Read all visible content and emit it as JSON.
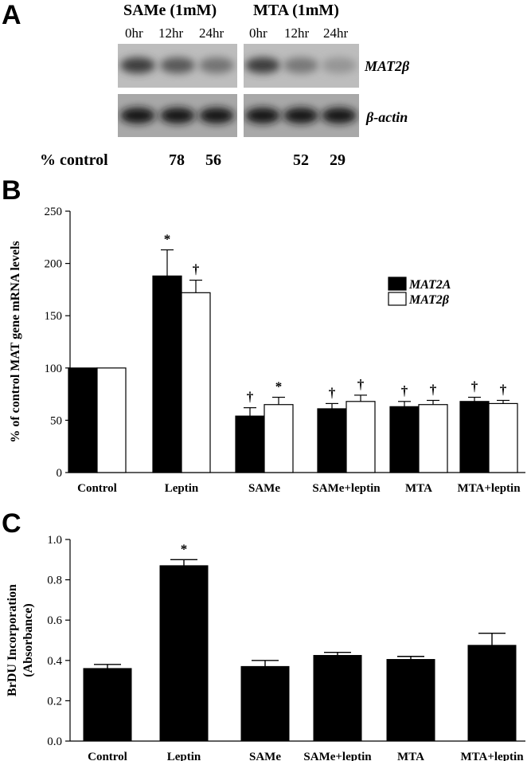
{
  "panelA": {
    "letter": "A",
    "groups": [
      {
        "label": "SAMe (1mM)",
        "times": [
          "0hr",
          "12hr",
          "24hr"
        ]
      },
      {
        "label": "MTA (1mM)",
        "times": [
          "0hr",
          "12hr",
          "24hr"
        ]
      }
    ],
    "bands": [
      "MAT2β",
      "β-actin"
    ],
    "percent_label": "% control",
    "percent_values": [
      "78",
      "56",
      "52",
      "29"
    ],
    "band_intensity": {
      "MAT2β": [
        [
          1.0,
          0.78,
          0.56
        ],
        [
          1.0,
          0.52,
          0.29
        ]
      ],
      "β-actin": [
        [
          1.0,
          1.0,
          1.0
        ],
        [
          1.0,
          1.0,
          1.0
        ]
      ]
    }
  },
  "chart_data": [
    {
      "panel": "B",
      "type": "bar",
      "ylabel": "% of control MAT gene mRNA levels",
      "ylim": [
        0,
        250
      ],
      "yticks": [
        0,
        50,
        100,
        150,
        200,
        250
      ],
      "categories": [
        "Control",
        "Leptin",
        "SAMe",
        "SAMe+leptin",
        "MTA",
        "MTA+leptin"
      ],
      "series": [
        {
          "name": "MAT2A",
          "color": "#000000",
          "values": [
            100,
            188,
            54,
            61,
            63,
            68
          ],
          "errors": [
            0,
            25,
            8,
            5,
            5,
            4
          ],
          "marks": [
            "",
            "*",
            "†",
            "†",
            "†",
            "†"
          ]
        },
        {
          "name": "MAT2β",
          "color": "#ffffff",
          "values": [
            100,
            172,
            65,
            68,
            65,
            66
          ],
          "errors": [
            0,
            12,
            7,
            6,
            4,
            3
          ],
          "marks": [
            "",
            "†",
            "*",
            "†",
            "†",
            "†"
          ]
        }
      ],
      "legend": "right"
    },
    {
      "panel": "C",
      "type": "bar",
      "ylabel_lines": [
        "BrDU Incorporation",
        "(Absorbance)"
      ],
      "ylim": [
        0,
        1.0
      ],
      "yticks": [
        "0.0",
        "0.2",
        "0.4",
        "0.6",
        "0.8",
        "1.0"
      ],
      "categories": [
        "Control",
        "Leptin",
        "SAMe",
        "SAMe+leptin",
        "MTA",
        "MTA+leptin"
      ],
      "values": [
        0.36,
        0.87,
        0.37,
        0.425,
        0.405,
        0.475
      ],
      "errors": [
        0.02,
        0.03,
        0.03,
        0.015,
        0.015,
        0.06
      ],
      "marks": [
        "",
        "*",
        "",
        "",
        "",
        ""
      ],
      "color": "#000000"
    }
  ],
  "letters": {
    "B": "B",
    "C": "C"
  }
}
